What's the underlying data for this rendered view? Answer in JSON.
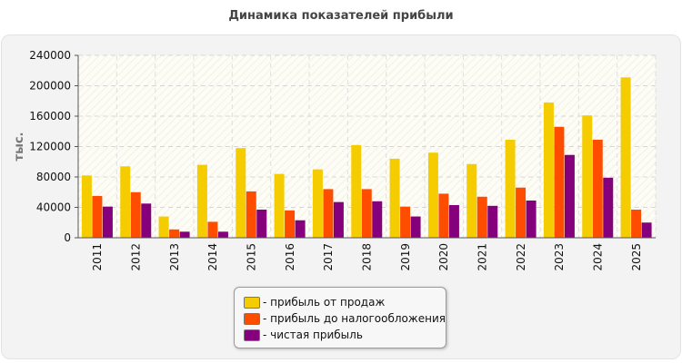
{
  "chart_data": {
    "type": "bar",
    "title": "Динамика показателей прибыли",
    "ylabel": "тыс.",
    "xlabel": "",
    "ylim": [
      0,
      240000
    ],
    "yticks": [
      0,
      40000,
      80000,
      120000,
      160000,
      200000,
      240000
    ],
    "grid": true,
    "legend_position": "bottom-center",
    "categories": [
      "2011",
      "2012",
      "2013",
      "2014",
      "2015",
      "2016",
      "2017",
      "2018",
      "2019",
      "2020",
      "2021",
      "2022",
      "2023",
      "2024",
      "2025"
    ],
    "series": [
      {
        "name": "- прибыль от продаж",
        "color": "#f5cc00",
        "values": [
          82000,
          94000,
          28000,
          96000,
          118000,
          84000,
          90000,
          122000,
          104000,
          112000,
          97000,
          129000,
          178000,
          161000,
          211000
        ]
      },
      {
        "name": "- прибыль до налогообложения",
        "color": "#ff4d00",
        "values": [
          55000,
          60000,
          11000,
          21000,
          61000,
          36000,
          64000,
          64000,
          41000,
          58000,
          54000,
          66000,
          146000,
          129000,
          37000
        ]
      },
      {
        "name": "- чистая прибыль",
        "color": "#85007b",
        "values": [
          41000,
          45000,
          8000,
          8000,
          37000,
          23000,
          47000,
          48000,
          28000,
          43000,
          42000,
          49000,
          109000,
          79000,
          20000
        ]
      }
    ]
  }
}
